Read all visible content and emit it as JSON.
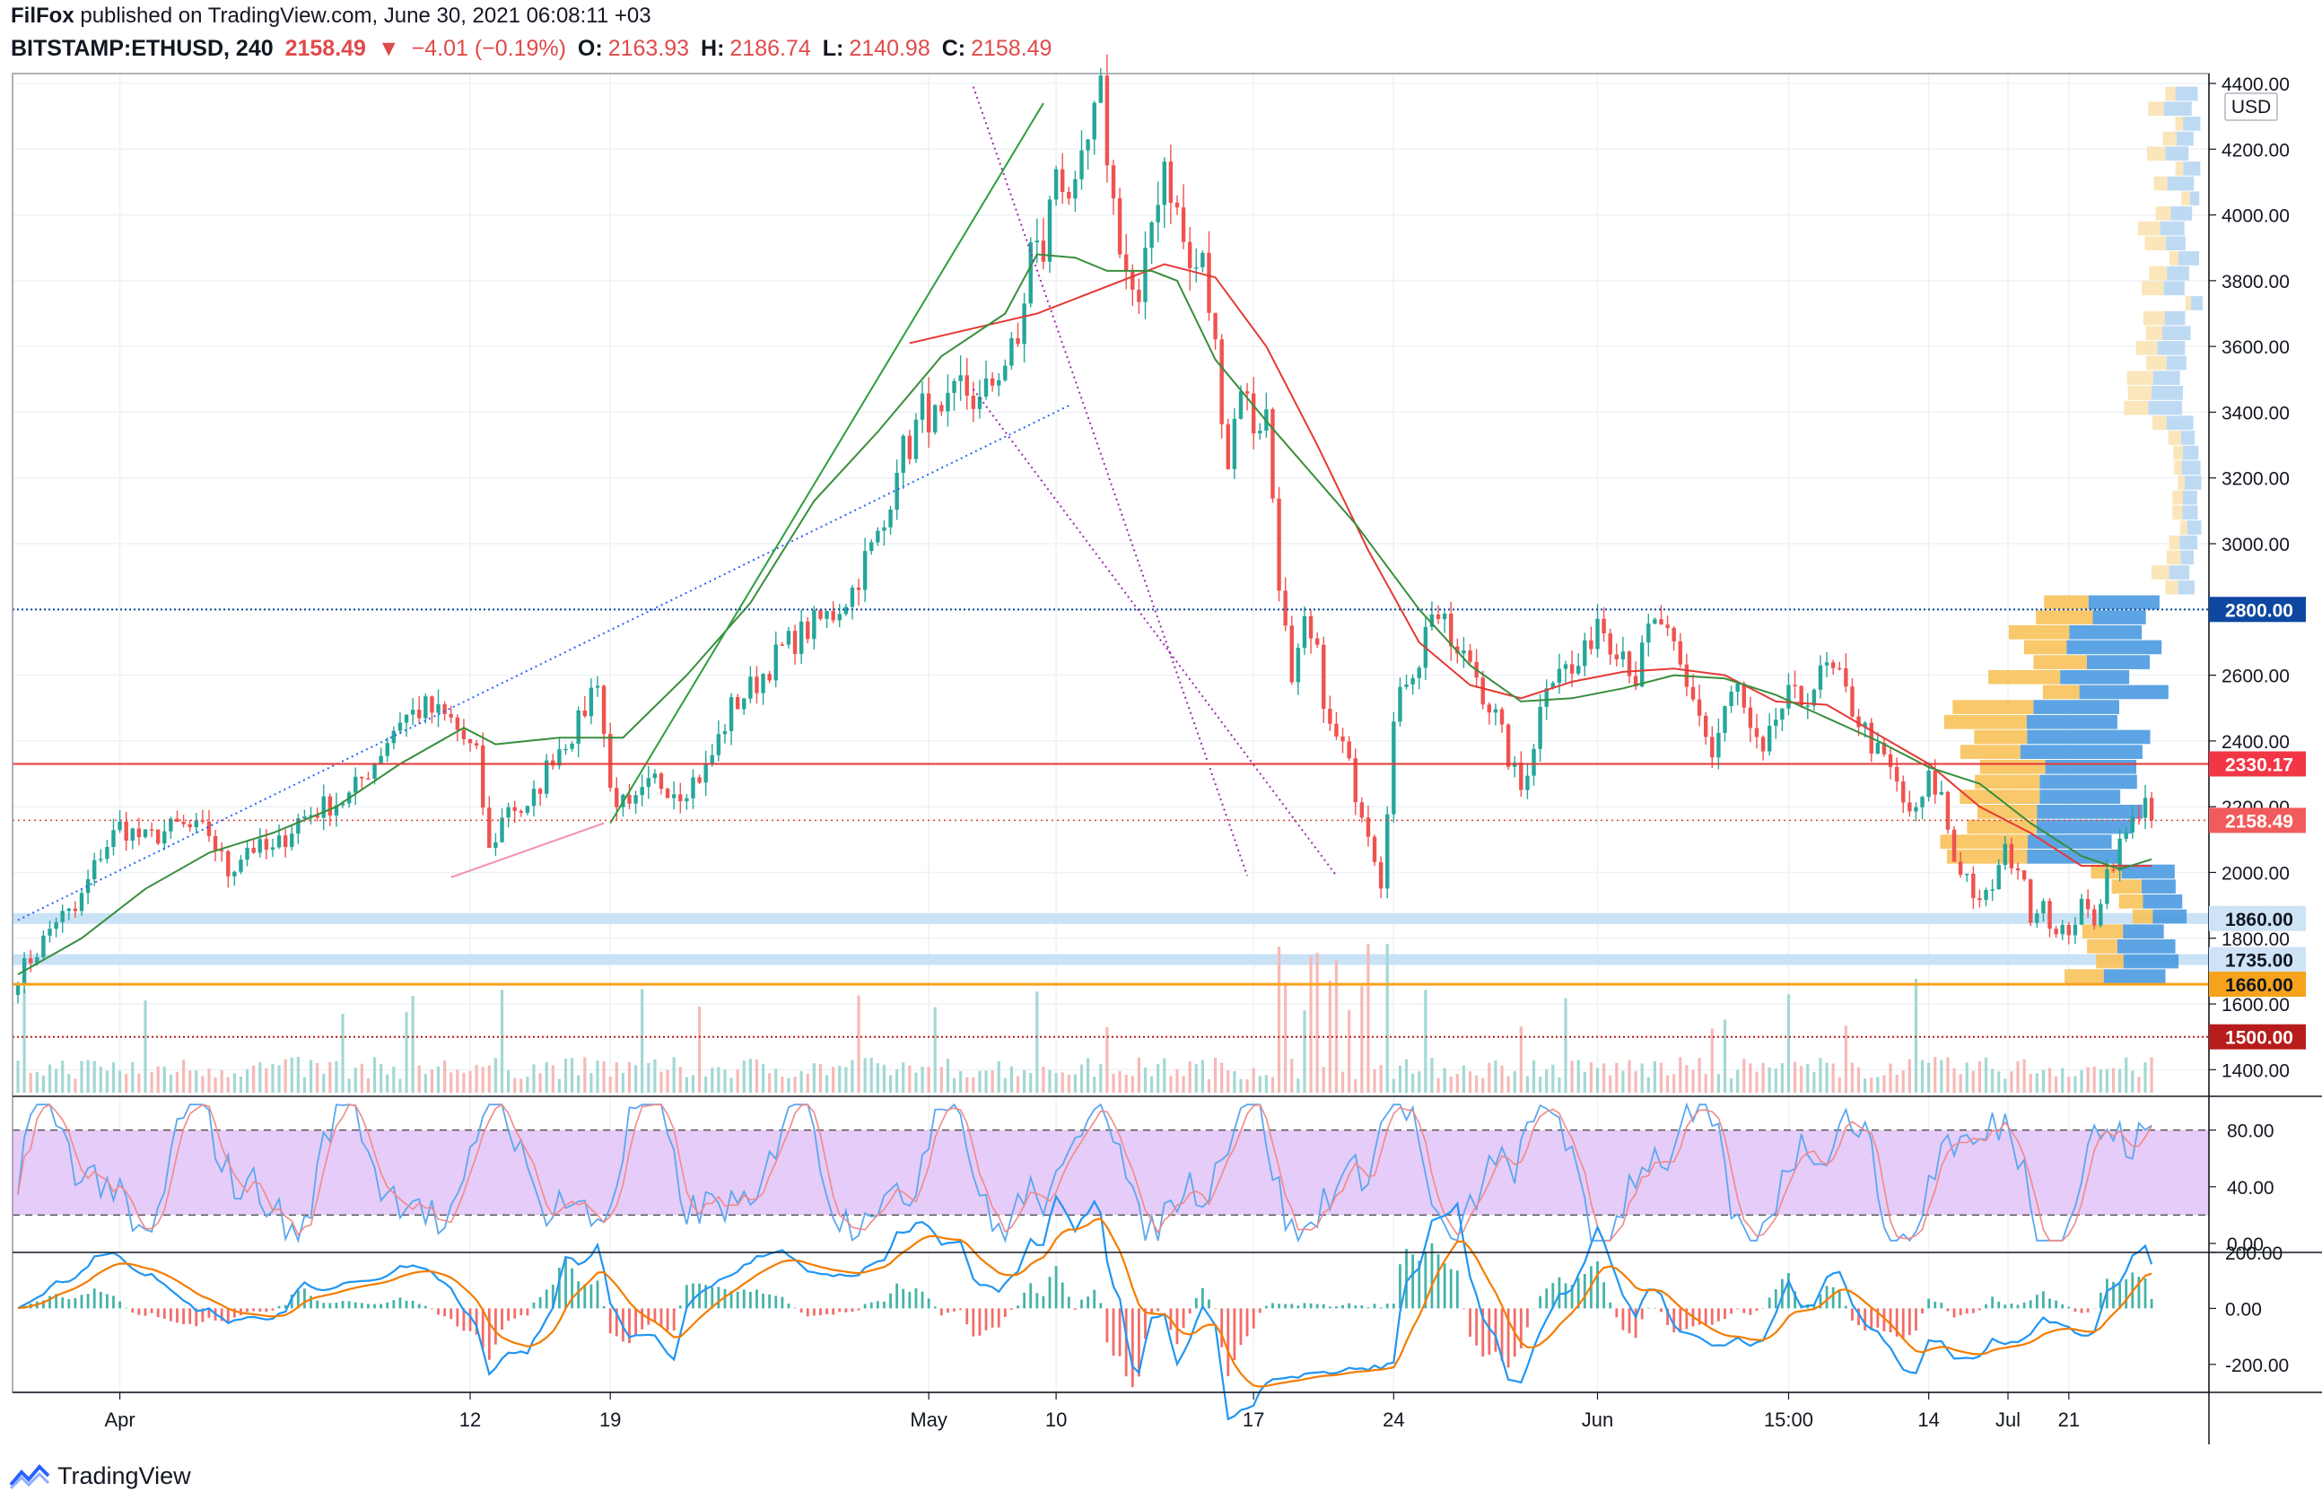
{
  "header": {
    "publisher": "FilFox",
    "published_text": "published on TradingView.com, June 30, 2021 06:08:11 +03",
    "symbol": "BITSTAMP:ETHUSD, 240",
    "last": "2158.49",
    "change": "−4.01 (−0.19%)",
    "o_label": "O:",
    "o_value": "2163.93",
    "h_label": "H:",
    "h_value": "2186.74",
    "l_label": "L:",
    "l_value": "2140.98",
    "c_label": "C:",
    "c_value": "2158.49"
  },
  "footer": {
    "brand": "TradingView"
  },
  "currency_badge": "USD",
  "colors": {
    "up": "#26a69a",
    "down": "#ef5350",
    "ma_red": "#e53935",
    "ma_green": "#388e3c",
    "trend_blue": "#2962ff",
    "trend_purple": "#9c27b0",
    "support_band": "#c9e2f5",
    "level_orange": "#f7a21b",
    "level_navy": "#0d47a1",
    "level_darkred": "#b71c1c",
    "stoch_fill": "#e3c6f7",
    "macd_blue": "#2196f3",
    "macd_orange": "#f57c00"
  },
  "chart_data": [
    {
      "type": "candlestick",
      "ylim": [
        1330,
        4430
      ],
      "y_ticks": [
        "1400.00",
        "1600.00",
        "1800.00",
        "2000.00",
        "2200.00",
        "2400.00",
        "2600.00",
        "2800.00",
        "3000.00",
        "3200.00",
        "3400.00",
        "3600.00",
        "3800.00",
        "4000.00",
        "4200.00",
        "4400.00"
      ],
      "x_tick_labels": [
        "Apr",
        "12",
        "19",
        "May",
        "10",
        "17",
        "24",
        "Jun",
        "15:00",
        "14",
        "21",
        "Jul"
      ],
      "path_points": [
        [
          0,
          1690
        ],
        [
          3,
          1760
        ],
        [
          6,
          1860
        ],
        [
          9,
          1880
        ],
        [
          13,
          2060
        ],
        [
          16,
          2140
        ],
        [
          20,
          2100
        ],
        [
          25,
          2140
        ],
        [
          30,
          2120
        ],
        [
          33,
          2000
        ],
        [
          36,
          2080
        ],
        [
          40,
          2060
        ],
        [
          44,
          2160
        ],
        [
          48,
          2200
        ],
        [
          52,
          2230
        ],
        [
          56,
          2340
        ],
        [
          60,
          2470
        ],
        [
          64,
          2500
        ],
        [
          68,
          2460
        ],
        [
          72,
          2350
        ],
        [
          74,
          2060
        ],
        [
          77,
          2210
        ],
        [
          80,
          2180
        ],
        [
          84,
          2360
        ],
        [
          88,
          2450
        ],
        [
          91,
          2600
        ],
        [
          93,
          2250
        ],
        [
          96,
          2180
        ],
        [
          100,
          2280
        ],
        [
          104,
          2250
        ],
        [
          108,
          2310
        ],
        [
          112,
          2500
        ],
        [
          116,
          2580
        ],
        [
          120,
          2680
        ],
        [
          124,
          2740
        ],
        [
          128,
          2790
        ],
        [
          131,
          2860
        ],
        [
          133,
          2950
        ],
        [
          136,
          3050
        ],
        [
          138,
          3260
        ],
        [
          140,
          3300
        ],
        [
          142,
          3410
        ],
        [
          145,
          3360
        ],
        [
          148,
          3480
        ],
        [
          151,
          3420
        ],
        [
          154,
          3530
        ],
        [
          157,
          3600
        ],
        [
          159,
          3900
        ],
        [
          161,
          3880
        ],
        [
          163,
          4150
        ],
        [
          166,
          4040
        ],
        [
          168,
          4210
        ],
        [
          170,
          4360
        ],
        [
          172,
          4030
        ],
        [
          174,
          3830
        ],
        [
          176,
          3700
        ],
        [
          178,
          3980
        ],
        [
          180,
          4170
        ],
        [
          182,
          4000
        ],
        [
          184,
          3830
        ],
        [
          186,
          3850
        ],
        [
          188,
          3590
        ],
        [
          190,
          3250
        ],
        [
          192,
          3500
        ],
        [
          194,
          3360
        ],
        [
          196,
          3390
        ],
        [
          198,
          2900
        ],
        [
          200,
          2550
        ],
        [
          202,
          2740
        ],
        [
          204,
          2650
        ],
        [
          206,
          2430
        ],
        [
          208,
          2380
        ],
        [
          210,
          2250
        ],
        [
          212,
          2140
        ],
        [
          214,
          1980
        ],
        [
          216,
          2450
        ],
        [
          218,
          2600
        ],
        [
          220,
          2650
        ],
        [
          222,
          2810
        ],
        [
          224,
          2740
        ],
        [
          226,
          2650
        ],
        [
          228,
          2650
        ],
        [
          230,
          2550
        ],
        [
          232,
          2470
        ],
        [
          234,
          2350
        ],
        [
          236,
          2250
        ],
        [
          238,
          2400
        ],
        [
          240,
          2590
        ],
        [
          242,
          2640
        ],
        [
          244,
          2600
        ],
        [
          246,
          2660
        ],
        [
          248,
          2780
        ],
        [
          250,
          2710
        ],
        [
          252,
          2680
        ],
        [
          254,
          2590
        ],
        [
          256,
          2730
        ],
        [
          258,
          2760
        ],
        [
          260,
          2660
        ],
        [
          262,
          2550
        ],
        [
          264,
          2490
        ],
        [
          266,
          2350
        ],
        [
          268,
          2500
        ],
        [
          270,
          2560
        ],
        [
          272,
          2420
        ],
        [
          274,
          2340
        ],
        [
          276,
          2470
        ],
        [
          278,
          2530
        ],
        [
          280,
          2520
        ],
        [
          282,
          2570
        ],
        [
          284,
          2620
        ],
        [
          286,
          2580
        ],
        [
          288,
          2500
        ],
        [
          290,
          2430
        ],
        [
          292,
          2360
        ],
        [
          294,
          2310
        ],
        [
          296,
          2210
        ],
        [
          298,
          2170
        ],
        [
          300,
          2280
        ],
        [
          302,
          2230
        ],
        [
          304,
          2040
        ],
        [
          306,
          1990
        ],
        [
          308,
          1890
        ],
        [
          310,
          1960
        ],
        [
          312,
          2060
        ],
        [
          314,
          2020
        ],
        [
          316,
          1880
        ],
        [
          318,
          1920
        ],
        [
          320,
          1800
        ],
        [
          322,
          1830
        ],
        [
          324,
          1890
        ],
        [
          326,
          1860
        ],
        [
          328,
          2000
        ],
        [
          330,
          2080
        ],
        [
          332,
          2150
        ],
        [
          334,
          2240
        ],
        [
          335,
          2158
        ]
      ],
      "bar_count": 336,
      "moving_averages": [
        {
          "color": "red",
          "points": [
            [
              140,
              3610
            ],
            [
              160,
              3700
            ],
            [
              180,
              3850
            ],
            [
              188,
              3810
            ],
            [
              196,
              3600
            ],
            [
              204,
              3300
            ],
            [
              212,
              2980
            ],
            [
              220,
              2700
            ],
            [
              228,
              2570
            ],
            [
              236,
              2530
            ],
            [
              244,
              2580
            ],
            [
              252,
              2610
            ],
            [
              260,
              2620
            ],
            [
              268,
              2600
            ],
            [
              276,
              2520
            ],
            [
              284,
              2510
            ],
            [
              292,
              2420
            ],
            [
              300,
              2330
            ],
            [
              308,
              2200
            ],
            [
              316,
              2120
            ],
            [
              324,
              2020
            ],
            [
              335,
              2020
            ]
          ]
        },
        {
          "color": "green",
          "points": [
            [
              0,
              1690
            ],
            [
              10,
              1800
            ],
            [
              20,
              1950
            ],
            [
              30,
              2060
            ],
            [
              40,
              2120
            ],
            [
              50,
              2200
            ],
            [
              60,
              2330
            ],
            [
              70,
              2440
            ],
            [
              75,
              2390
            ],
            [
              85,
              2410
            ],
            [
              95,
              2410
            ],
            [
              105,
              2600
            ],
            [
              115,
              2820
            ],
            [
              125,
              3130
            ],
            [
              135,
              3340
            ],
            [
              145,
              3570
            ],
            [
              155,
              3700
            ],
            [
              160,
              3880
            ],
            [
              166,
              3870
            ],
            [
              171,
              3830
            ],
            [
              178,
              3830
            ],
            [
              182,
              3800
            ],
            [
              188,
              3560
            ],
            [
              197,
              3350
            ],
            [
              210,
              3060
            ],
            [
              220,
              2800
            ],
            [
              228,
              2630
            ],
            [
              236,
              2520
            ],
            [
              244,
              2530
            ],
            [
              252,
              2560
            ],
            [
              260,
              2600
            ],
            [
              268,
              2590
            ],
            [
              276,
              2540
            ],
            [
              284,
              2470
            ],
            [
              292,
              2400
            ],
            [
              300,
              2320
            ],
            [
              308,
              2270
            ],
            [
              316,
              2150
            ],
            [
              324,
              2050
            ],
            [
              330,
              2010
            ],
            [
              335,
              2040
            ]
          ]
        }
      ],
      "trendlines": [
        {
          "style": "dotted-blue",
          "from": [
            0,
            1855
          ],
          "to": [
            165,
            3420
          ]
        },
        {
          "style": "solid-green",
          "from": [
            93,
            2150
          ],
          "to": [
            161,
            4340
          ]
        },
        {
          "style": "dotted-purple",
          "from": [
            150,
            4390
          ],
          "to": [
            193,
            1990
          ]
        },
        {
          "style": "dotted-purple",
          "from": [
            150,
            3470
          ],
          "to": [
            207,
            1990
          ]
        },
        {
          "style": "solid-pink",
          "from": [
            68,
            1985
          ],
          "to": [
            92,
            2150
          ]
        }
      ],
      "horizontal_levels": [
        {
          "value": 2800.0,
          "label": "2800.00",
          "style": "dotted-navy",
          "badge": "navy"
        },
        {
          "value": 2330.17,
          "label": "2330.17",
          "style": "solid-red",
          "badge": "red"
        },
        {
          "value": 2158.49,
          "label": "2158.49",
          "style": "dotted-red",
          "badge": "red-light"
        },
        {
          "value": 1860.0,
          "label": "1860.00",
          "style": "band-blue",
          "badge": "blue-light"
        },
        {
          "value": 1735.0,
          "label": "1735.00",
          "style": "band-blue",
          "badge": "blue-light"
        },
        {
          "value": 1660.0,
          "label": "1660.00",
          "style": "solid-orange",
          "badge": "orange"
        },
        {
          "value": 1500.0,
          "label": "1500.00",
          "style": "dotted-darkred",
          "badge": "darkred"
        }
      ],
      "volume_profile": {
        "range": [
          1660,
          4390
        ],
        "buckets": 60,
        "note": "horizontal volume-at-price histogram on right side"
      },
      "volume_bars": true
    },
    {
      "type": "line",
      "name": "stochastic_rsi",
      "ylim": [
        0,
        100
      ],
      "y_ticks": [
        "0.00",
        "40.00",
        "80.00"
      ],
      "bands": [
        20,
        80
      ]
    },
    {
      "type": "line",
      "name": "macd",
      "ylim": [
        -300,
        200
      ],
      "y_ticks": [
        "-200.00",
        "0.00",
        "200.00"
      ]
    }
  ]
}
